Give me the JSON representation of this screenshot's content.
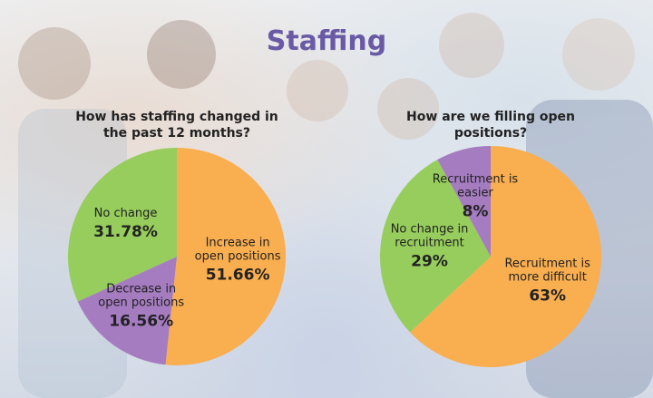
{
  "title": "Staffing",
  "chart_data": [
    {
      "type": "pie",
      "title": "How has staffing changed in the past 12 months?",
      "categories": [
        "Increase in open positions",
        "Decrease in open positions",
        "No change"
      ],
      "values": [
        51.66,
        16.56,
        31.78
      ],
      "value_labels": [
        "51.66%",
        "16.56%",
        "31.78%"
      ],
      "colors": [
        "#f9ae4f",
        "#a57cc0",
        "#96cd5c"
      ]
    },
    {
      "type": "pie",
      "title": "How are we filling open positions?",
      "categories": [
        "Recruitment is more difficult",
        "No change in recruitment",
        "Recruitment is easier"
      ],
      "values": [
        63,
        29,
        8
      ],
      "value_labels": [
        "63%",
        "29%",
        "8%"
      ],
      "colors": [
        "#f9ae4f",
        "#96cd5c",
        "#a57cc0"
      ]
    }
  ]
}
